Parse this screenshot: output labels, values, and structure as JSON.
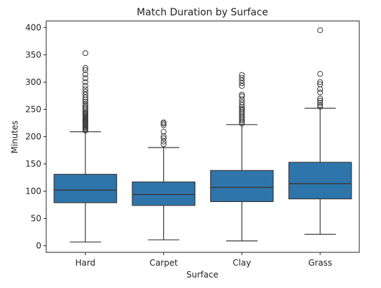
{
  "chart_data": {
    "type": "box",
    "title": "Match Duration by Surface",
    "xlabel": "Surface",
    "ylabel": "Minutes",
    "ylim": [
      -12,
      412
    ],
    "yticks": [
      0,
      50,
      100,
      150,
      200,
      250,
      300,
      350,
      400
    ],
    "grid": false,
    "box_color": "#2e75ac",
    "edge_color": "#3a3a3a",
    "categories": [
      "Hard",
      "Carpet",
      "Clay",
      "Grass"
    ],
    "boxes": [
      {
        "category": "Hard",
        "whisker_low": 7,
        "q1": 79,
        "median": 102,
        "q3": 131,
        "whisker_high": 209,
        "outliers": [
          211,
          213,
          215,
          217,
          219,
          221,
          223,
          225,
          227,
          229,
          231,
          233,
          235,
          237,
          239,
          241,
          243,
          245,
          248,
          251,
          254,
          257,
          260,
          264,
          268,
          272,
          277,
          282,
          287,
          293,
          300,
          307,
          314,
          322,
          326,
          353
        ]
      },
      {
        "category": "Carpet",
        "whisker_low": 11,
        "q1": 74,
        "median": 94,
        "q3": 117,
        "whisker_high": 180,
        "outliers": [
          186,
          191,
          197,
          201,
          209,
          221,
          224,
          226
        ]
      },
      {
        "category": "Clay",
        "whisker_low": 9,
        "q1": 81,
        "median": 107,
        "q3": 138,
        "whisker_high": 222,
        "outliers": [
          224,
          227,
          230,
          233,
          236,
          239,
          242,
          245,
          248,
          251,
          254,
          258,
          263,
          268,
          274,
          277,
          293,
          298,
          303,
          308,
          313
        ]
      },
      {
        "category": "Grass",
        "whisker_low": 21,
        "q1": 86,
        "median": 114,
        "q3": 153,
        "whisker_high": 252,
        "outliers": [
          255,
          258,
          262,
          266,
          270,
          281,
          287,
          296,
          300,
          315,
          395
        ]
      }
    ]
  }
}
